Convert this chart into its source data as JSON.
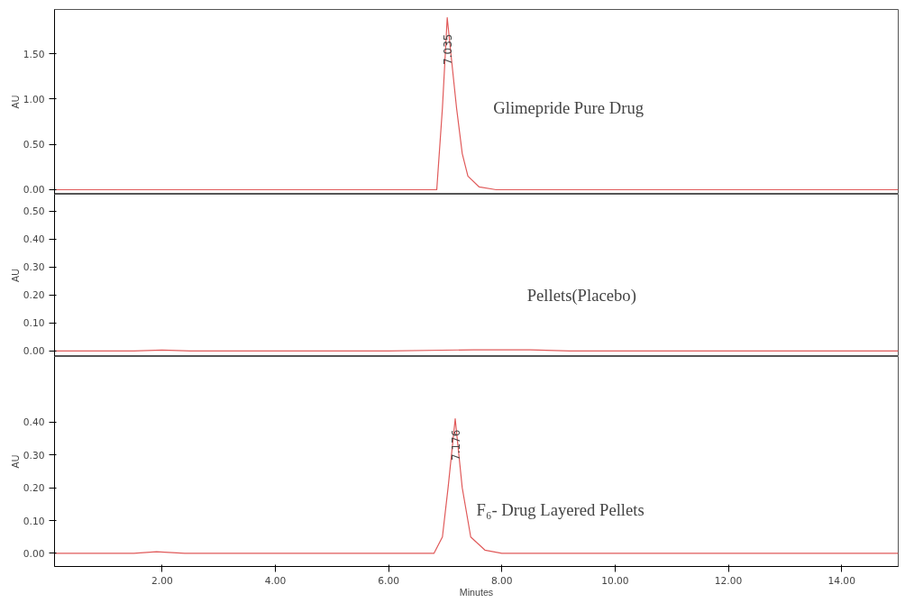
{
  "chart_data": [
    {
      "type": "line",
      "ylabel": "AU",
      "x": [
        0.1,
        1.0,
        3.0,
        5.0,
        6.5,
        6.85,
        6.95,
        7.035,
        7.1,
        7.2,
        7.3,
        7.4,
        7.6,
        7.9,
        9.0,
        12.0,
        15.0
      ],
      "series": [
        {
          "color": "#e05a5a",
          "values": [
            0,
            0,
            0,
            0,
            0,
            0,
            0.9,
            1.9,
            1.5,
            0.9,
            0.4,
            0.15,
            0.03,
            0,
            0,
            0,
            0
          ]
        }
      ],
      "xlim": [
        0.1,
        15
      ],
      "ylim": [
        -0.05,
        1.99
      ],
      "yticks": [
        {
          "value": 0,
          "label": "0.00"
        },
        {
          "value": 0.5,
          "label": "0.50"
        },
        {
          "value": 1,
          "label": "1.00"
        },
        {
          "value": 1.5,
          "label": "1.50"
        }
      ],
      "tick_labels": "y",
      "grid": false,
      "line_style": "solid",
      "annotations": [
        {
          "text": "7.035",
          "x": 7.035,
          "y": 1.55
        },
        "Glimepride Pure Drug"
      ]
    },
    {
      "type": "line",
      "ylabel": "AU",
      "x": [
        0.1,
        1.5,
        2.0,
        2.5,
        4.0,
        6.0,
        7.5,
        8.5,
        9.2,
        12.0,
        15.0
      ],
      "series": [
        {
          "color": "#e05a5a",
          "values": [
            0,
            0,
            0.003,
            0,
            0,
            0,
            0.004,
            0.004,
            0,
            0,
            0
          ]
        }
      ],
      "xlim": [
        0.1,
        15
      ],
      "ylim": [
        -0.02,
        0.56
      ],
      "yticks": [
        {
          "value": 0,
          "label": "0.00"
        },
        {
          "value": 0.1,
          "label": "0.10"
        },
        {
          "value": 0.2,
          "label": "0.20"
        },
        {
          "value": 0.3,
          "label": "0.30"
        },
        {
          "value": 0.4,
          "label": "0.40"
        },
        {
          "value": 0.5,
          "label": "0.50"
        }
      ],
      "tick_labels": "y",
      "grid": false,
      "line_style": "solid",
      "annotations": [
        "Pellets(Placebo)"
      ]
    },
    {
      "type": "line",
      "ylabel": "AU",
      "xlabel": "Minutes",
      "x": [
        0.1,
        1.5,
        1.9,
        2.4,
        4.0,
        6.0,
        6.8,
        6.95,
        7.05,
        7.176,
        7.3,
        7.45,
        7.7,
        8.0,
        10.0,
        15.0
      ],
      "series": [
        {
          "color": "#e05a5a",
          "values": [
            0,
            0,
            0.005,
            0,
            0,
            0,
            0,
            0.05,
            0.2,
            0.41,
            0.2,
            0.05,
            0.01,
            0,
            0,
            0
          ]
        }
      ],
      "xlim": [
        0.1,
        15
      ],
      "xticks": [
        {
          "value": 2,
          "label": "2.00"
        },
        {
          "value": 4,
          "label": "4.00"
        },
        {
          "value": 6,
          "label": "6.00"
        },
        {
          "value": 8,
          "label": "8.00"
        },
        {
          "value": 10,
          "label": "10.00"
        },
        {
          "value": 12,
          "label": "12.00"
        },
        {
          "value": 14,
          "label": "14.00"
        }
      ],
      "ylim": [
        -0.04,
        0.6
      ],
      "yticks": [
        {
          "value": 0,
          "label": "0.00"
        },
        {
          "value": 0.1,
          "label": "0.10"
        },
        {
          "value": 0.2,
          "label": "0.20"
        },
        {
          "value": 0.3,
          "label": "0.30"
        },
        {
          "value": 0.4,
          "label": "0.40"
        }
      ],
      "grid": false,
      "line_style": "solid",
      "annotations": [
        {
          "text": "7.176",
          "x": 7.176,
          "y": 0.33
        },
        "F₆- Drug Layered Pellets"
      ]
    }
  ]
}
